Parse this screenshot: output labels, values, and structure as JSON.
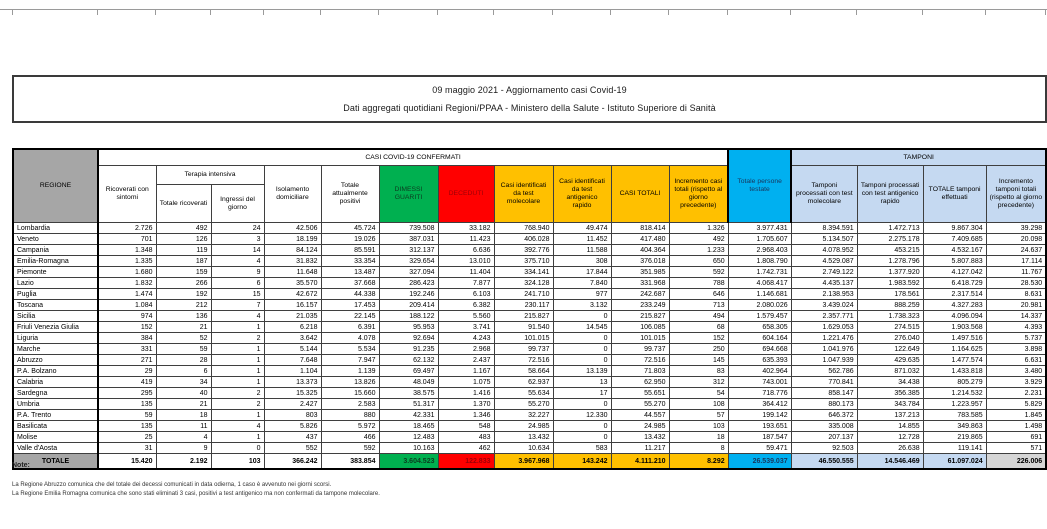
{
  "title": {
    "line1": "09 maggio 2021 - Aggiornamento casi Covid-19",
    "line2": "Dati aggregati quotidiani Regioni/PPAA - Ministero della Salute - Istituto Superiore di Sanità"
  },
  "table": {
    "headers": {
      "regione": "REGIONE",
      "casi_confermati": "CASI COVID-19 CONFERMATI",
      "tamponi_group": "TAMPONI",
      "ricoverati": "Ricoverati con sintomi",
      "terapia": "Terapia intensiva",
      "tot_ricoverati": "Totale ricoverati",
      "ingressi": "Ingressi del giorno",
      "isolamento": "Isolamento domiciliare",
      "tot_positivi": "Totale attualmente positivi",
      "dimessi": "DIMESSI GUARITI",
      "deceduti": "DECEDUTI",
      "casi_mol": "Casi identificati da test molecolare",
      "casi_ant": "Casi identificati da test antigenico rapido",
      "casi_totali": "CASI TOTALI",
      "incr_casi": "Incremento casi totali (rispetto al giorno precedente)",
      "testate": "Totale persone testate",
      "tamponi_mol": "Tamponi processati con test molecolare",
      "tamponi_ant": "Tamponi processati con test antigenico rapido",
      "tamponi_tot": "TOTALE tamponi effettuati",
      "incr_tamponi": "Incremento tamponi totali (rispetto al giorno precedente)"
    },
    "rows": [
      {
        "region": "Lombardia",
        "values": [
          "2.726",
          "492",
          "24",
          "42.506",
          "45.724",
          "739.508",
          "33.182",
          "768.940",
          "49.474",
          "818.414",
          "1.326",
          "3.977.431",
          "8.394.591",
          "1.472.713",
          "9.867.304",
          "39.298"
        ]
      },
      {
        "region": "Veneto",
        "values": [
          "701",
          "126",
          "3",
          "18.199",
          "19.026",
          "387.031",
          "11.423",
          "406.028",
          "11.452",
          "417.480",
          "492",
          "1.705.607",
          "5.134.507",
          "2.275.178",
          "7.409.685",
          "20.098"
        ]
      },
      {
        "region": "Campania",
        "values": [
          "1.348",
          "119",
          "14",
          "84.124",
          "85.591",
          "312.137",
          "6.636",
          "392.776",
          "11.588",
          "404.364",
          "1.233",
          "2.968.403",
          "4.078.952",
          "453.215",
          "4.532.167",
          "24.637"
        ]
      },
      {
        "region": "Emilia-Romagna",
        "values": [
          "1.335",
          "187",
          "4",
          "31.832",
          "33.354",
          "329.654",
          "13.010",
          "375.710",
          "308",
          "376.018",
          "650",
          "1.808.790",
          "4.529.087",
          "1.278.796",
          "5.807.883",
          "17.114"
        ]
      },
      {
        "region": "Piemonte",
        "values": [
          "1.680",
          "159",
          "9",
          "11.648",
          "13.487",
          "327.094",
          "11.404",
          "334.141",
          "17.844",
          "351.985",
          "592",
          "1.742.731",
          "2.749.122",
          "1.377.920",
          "4.127.042",
          "11.767"
        ]
      },
      {
        "region": "Lazio",
        "values": [
          "1.832",
          "266",
          "6",
          "35.570",
          "37.668",
          "286.423",
          "7.877",
          "324.128",
          "7.840",
          "331.968",
          "788",
          "4.068.417",
          "4.435.137",
          "1.983.592",
          "6.418.729",
          "28.530"
        ]
      },
      {
        "region": "Puglia",
        "values": [
          "1.474",
          "192",
          "15",
          "42.672",
          "44.338",
          "192.246",
          "6.103",
          "241.710",
          "977",
          "242.687",
          "646",
          "1.146.681",
          "2.138.953",
          "178.561",
          "2.317.514",
          "8.631"
        ]
      },
      {
        "region": "Toscana",
        "values": [
          "1.084",
          "212",
          "7",
          "16.157",
          "17.453",
          "209.414",
          "6.382",
          "230.117",
          "3.132",
          "233.249",
          "713",
          "2.080.026",
          "3.439.024",
          "888.259",
          "4.327.283",
          "20.981"
        ]
      },
      {
        "region": "Sicilia",
        "values": [
          "974",
          "136",
          "4",
          "21.035",
          "22.145",
          "188.122",
          "5.560",
          "215.827",
          "0",
          "215.827",
          "494",
          "1.579.457",
          "2.357.771",
          "1.738.323",
          "4.096.094",
          "14.337"
        ]
      },
      {
        "region": "Friuli Venezia Giulia",
        "values": [
          "152",
          "21",
          "1",
          "6.218",
          "6.391",
          "95.953",
          "3.741",
          "91.540",
          "14.545",
          "106.085",
          "68",
          "658.305",
          "1.629.053",
          "274.515",
          "1.903.568",
          "4.393"
        ]
      },
      {
        "region": "Liguria",
        "values": [
          "384",
          "52",
          "2",
          "3.642",
          "4.078",
          "92.694",
          "4.243",
          "101.015",
          "0",
          "101.015",
          "152",
          "604.164",
          "1.221.476",
          "276.040",
          "1.497.516",
          "5.737"
        ]
      },
      {
        "region": "Marche",
        "values": [
          "331",
          "59",
          "1",
          "5.144",
          "5.534",
          "91.235",
          "2.968",
          "99.737",
          "0",
          "99.737",
          "250",
          "694.668",
          "1.041.976",
          "122.649",
          "1.164.625",
          "3.898"
        ]
      },
      {
        "region": "Abruzzo",
        "values": [
          "271",
          "28",
          "1",
          "7.648",
          "7.947",
          "62.132",
          "2.437",
          "72.516",
          "0",
          "72.516",
          "145",
          "635.393",
          "1.047.939",
          "429.635",
          "1.477.574",
          "6.631"
        ]
      },
      {
        "region": "P.A. Bolzano",
        "values": [
          "29",
          "6",
          "1",
          "1.104",
          "1.139",
          "69.497",
          "1.167",
          "58.664",
          "13.139",
          "71.803",
          "83",
          "402.964",
          "562.786",
          "871.032",
          "1.433.818",
          "3.480"
        ]
      },
      {
        "region": "Calabria",
        "values": [
          "419",
          "34",
          "1",
          "13.373",
          "13.826",
          "48.049",
          "1.075",
          "62.937",
          "13",
          "62.950",
          "312",
          "743.001",
          "770.841",
          "34.438",
          "805.279",
          "3.929"
        ]
      },
      {
        "region": "Sardegna",
        "values": [
          "295",
          "40",
          "2",
          "15.325",
          "15.660",
          "38.575",
          "1.416",
          "55.634",
          "17",
          "55.651",
          "54",
          "718.776",
          "858.147",
          "356.385",
          "1.214.532",
          "2.231"
        ]
      },
      {
        "region": "Umbria",
        "values": [
          "135",
          "21",
          "2",
          "2.427",
          "2.583",
          "51.317",
          "1.370",
          "55.270",
          "0",
          "55.270",
          "108",
          "364.412",
          "880.173",
          "343.784",
          "1.223.957",
          "5.829"
        ]
      },
      {
        "region": "P.A. Trento",
        "values": [
          "59",
          "18",
          "1",
          "803",
          "880",
          "42.331",
          "1.346",
          "32.227",
          "12.330",
          "44.557",
          "57",
          "199.142",
          "646.372",
          "137.213",
          "783.585",
          "1.845"
        ]
      },
      {
        "region": "Basilicata",
        "values": [
          "135",
          "11",
          "4",
          "5.826",
          "5.972",
          "18.465",
          "548",
          "24.985",
          "0",
          "24.985",
          "103",
          "193.651",
          "335.008",
          "14.855",
          "349.863",
          "1.498"
        ]
      },
      {
        "region": "Molise",
        "values": [
          "25",
          "4",
          "1",
          "437",
          "466",
          "12.483",
          "483",
          "13.432",
          "0",
          "13.432",
          "18",
          "187.547",
          "207.137",
          "12.728",
          "219.865",
          "691"
        ]
      },
      {
        "region": "Valle d'Aosta",
        "values": [
          "31",
          "9",
          "0",
          "552",
          "592",
          "10.163",
          "462",
          "10.634",
          "583",
          "11.217",
          "8",
          "59.471",
          "92.503",
          "26.638",
          "119.141",
          "571"
        ]
      }
    ],
    "total": {
      "label": "TOTALE",
      "values": [
        "15.420",
        "2.192",
        "103",
        "366.242",
        "383.854",
        "3.604.523",
        "122.833",
        "3.967.968",
        "143.242",
        "4.111.210",
        "8.292",
        "26.539.037",
        "46.550.555",
        "14.546.469",
        "61.097.024",
        "226.006"
      ]
    }
  },
  "notes": {
    "heading": "Note:",
    "lines": [
      "La Regione Abruzzo comunica che del totale dei decessi comunicati in data odierna, 1 caso è avvenuto nei giorni scorsi.",
      "La Regione Emilia Romagna comunica che sono stati eliminati 3 casi, positivi a test antigenico ma non confermati da tampone molecolare."
    ]
  },
  "colors": {
    "recovered_green": "#00b050",
    "deaths_red": "#ff0000",
    "cases_amber": "#ffc000",
    "tested_cyan": "#00b0f0",
    "swabs_light_blue": "#c5d9f1",
    "header_grey": "#a6a6a6"
  }
}
